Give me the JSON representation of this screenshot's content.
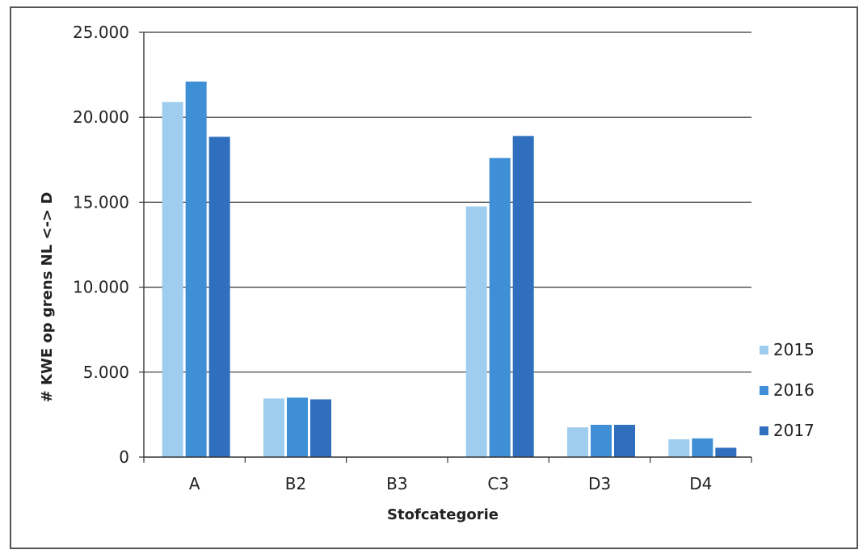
{
  "chart_data": {
    "type": "bar",
    "categories": [
      "A",
      "B2",
      "B3",
      "C3",
      "D3",
      "D4"
    ],
    "series": [
      {
        "name": "2015",
        "values": [
          20900,
          3450,
          0,
          14750,
          1750,
          1050
        ],
        "color": "#9fcdef"
      },
      {
        "name": "2016",
        "values": [
          22100,
          3500,
          0,
          17600,
          1900,
          1100
        ],
        "color": "#3f8fd6"
      },
      {
        "name": "2017",
        "values": [
          18850,
          3400,
          0,
          18900,
          1900,
          550
        ],
        "color": "#2f6fbd"
      }
    ],
    "xlabel": "Stofcategorie",
    "ylabel": "# KWE op grens NL <-> D",
    "ylim": [
      0,
      25000
    ],
    "yticks": [
      0,
      5000,
      10000,
      15000,
      20000,
      25000
    ],
    "ytick_labels": [
      "0",
      "5.000",
      "10.000",
      "15.000",
      "20.000",
      "25.000"
    ],
    "grid": true,
    "legend_position": "right"
  }
}
